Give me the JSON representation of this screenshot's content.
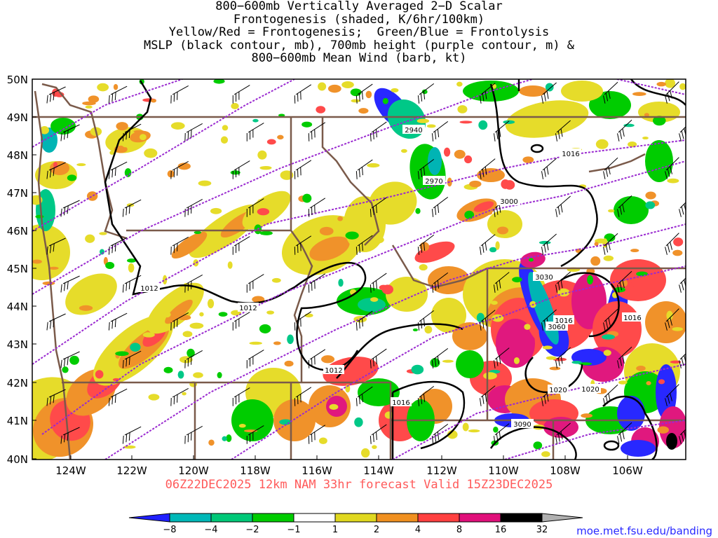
{
  "title": {
    "lines": [
      "800−600mb Vertically Averaged 2−D Scalar",
      "Frontogenesis (shaded, K/6hr/100km)",
      "Yellow/Red = Frontogenesis;  Green/Blue = Frontolysis",
      "MSLP (black contour, mb), 700mb height (purple contour, m) &",
      "800−600mb Mean Wind (barb, kt)"
    ]
  },
  "map": {
    "lat_labels": [
      "50N",
      "49N",
      "48N",
      "47N",
      "46N",
      "45N",
      "44N",
      "43N",
      "42N",
      "41N",
      "40N"
    ],
    "lon_labels": [
      "124W",
      "122W",
      "120W",
      "118W",
      "116W",
      "114W",
      "112W",
      "110W",
      "108W",
      "106W"
    ],
    "height_labels": [
      "2940",
      "2970",
      "3000",
      "3030",
      "3060",
      "3090"
    ],
    "mslp_labels": [
      "1012",
      "1012",
      "1012",
      "1016",
      "1016",
      "1016",
      "1016",
      "1020",
      "1020"
    ]
  },
  "valid_time": "06Z22DEC2025 12km NAM 33hr forecast Valid 15Z23DEC2025",
  "colorbar": {
    "labels": [
      "−8",
      "−4",
      "−2",
      "−1",
      "1",
      "2",
      "4",
      "8",
      "16",
      "32"
    ],
    "colors": [
      "#2020ff",
      "#00b8b8",
      "#00c878",
      "#00cc00",
      "#ffffff",
      "#e0d820",
      "#f09020",
      "#ff4040",
      "#e0107a",
      "#000000",
      "#b0b0b0"
    ]
  },
  "credit": "moe.met.fsu.edu/banding"
}
